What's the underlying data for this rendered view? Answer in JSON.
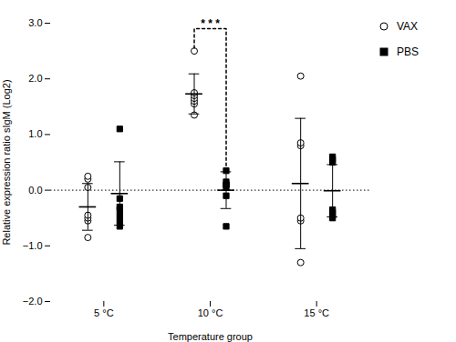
{
  "chart_data": {
    "type": "scatter",
    "categories": [
      "5 °C",
      "10 °C",
      "15 °C"
    ],
    "xlabel": "Temperature group",
    "ylabel": "Relative expression ratio sIgM (Log2)",
    "ylim": [
      -2.0,
      3.0
    ],
    "yticks": [
      -2,
      -1,
      0,
      1,
      2,
      3
    ],
    "grid": false,
    "legend": "right",
    "series": [
      {
        "name": "VAX",
        "color": "black",
        "marker": "open_circle",
        "values": [
          [
            -0.85,
            -0.55,
            -0.5,
            -0.45,
            0.05,
            0.2,
            0.25
          ],
          [
            1.35,
            1.55,
            1.6,
            1.65,
            1.7,
            1.75,
            2.5
          ],
          [
            -1.3,
            -0.55,
            -0.5,
            0.8,
            0.85,
            2.05
          ]
        ],
        "means": [
          -0.3,
          1.73,
          0.12
        ],
        "sd": [
          0.42,
          0.36,
          1.17
        ]
      },
      {
        "name": "PBS",
        "color": "black",
        "marker": "square",
        "values": [
          [
            -0.65,
            -0.55,
            -0.45,
            -0.35,
            -0.3,
            -0.15,
            1.1
          ],
          [
            -0.65,
            -0.1,
            0.05,
            0.1,
            0.1,
            0.15,
            0.35
          ],
          [
            -0.5,
            -0.45,
            -0.4,
            -0.35,
            0.5,
            0.55,
            0.6
          ]
        ],
        "means": [
          -0.06,
          0.0,
          -0.01
        ],
        "sd": [
          0.57,
          0.33,
          0.47
        ]
      }
    ],
    "reference_line": {
      "value": 0,
      "line_style": "dotted",
      "color": "black"
    },
    "bracket": {
      "category": "10 °C",
      "from": "VAX",
      "to": "PBS",
      "top": 2.9,
      "bottom_from": 2.55,
      "bottom_to": 0.35,
      "label": "* * *",
      "line_style": "dashed",
      "color": "black"
    }
  }
}
